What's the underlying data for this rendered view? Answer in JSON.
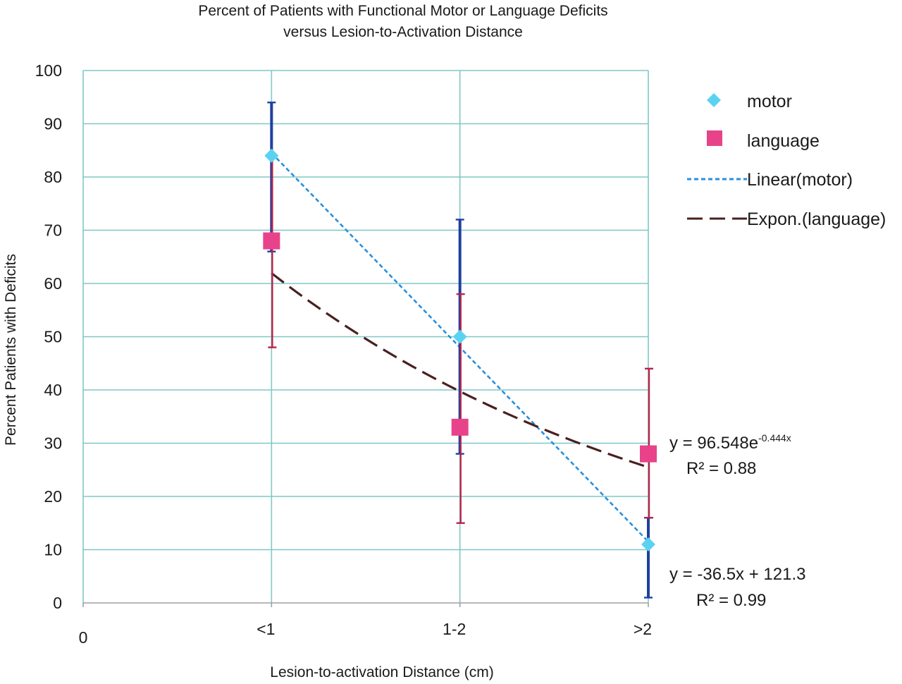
{
  "chart_data": {
    "type": "scatter",
    "title_line1": "Percent of Patients with Functional Motor or Language Deficits",
    "title_line2": "versus Lesion-to-Activation Distance",
    "xlabel": "Lesion-to-activation Distance (cm)",
    "ylabel": "Percent Patients with Deficits",
    "x_origin_label": "0",
    "categories": [
      "<1",
      "1-2",
      ">2"
    ],
    "ylim": [
      0,
      100
    ],
    "yticks": [
      "0",
      "10",
      "20",
      "30",
      "40",
      "50",
      "60",
      "70",
      "80",
      "90",
      "100"
    ],
    "grid": true,
    "legend_position": "right",
    "series": [
      {
        "name": "motor",
        "marker": "diamond",
        "color": "#5bd3f0",
        "values": [
          84,
          50,
          11
        ],
        "error_low": [
          66,
          28,
          1
        ],
        "error_high": [
          94,
          72,
          16
        ],
        "error_color": "#1f3fa0"
      },
      {
        "name": "language",
        "marker": "square",
        "color": "#e8438a",
        "values": [
          68,
          33,
          28
        ],
        "error_low": [
          48,
          15,
          16
        ],
        "error_high": [
          84,
          58,
          44
        ],
        "error_color": "#b8234a"
      }
    ],
    "trendlines": [
      {
        "name": "Linear(motor)",
        "type": "linear",
        "color": "#2a8fdc",
        "style": "dotted",
        "start": [
          1,
          84.5
        ],
        "end": [
          3,
          11.5
        ],
        "equation": "y = -36.5x + 121.3",
        "r2": "R² = 0.99"
      },
      {
        "name": "Expon.(language)",
        "type": "exponential",
        "color": "#4a2020",
        "style": "dashed",
        "coefficient": 96.548,
        "exponent": -0.444,
        "x_range": [
          1,
          3
        ],
        "equation_base": "y = 96.548e",
        "equation_exp": "-0.444x",
        "r2": "R² = 0.88"
      }
    ]
  },
  "legend": {
    "motor": "motor",
    "language": "language",
    "linear": "Linear(motor)",
    "expon": "Expon.(language)"
  },
  "colors": {
    "grid": "#7fc8c6",
    "axis": "#a0a0a0"
  }
}
